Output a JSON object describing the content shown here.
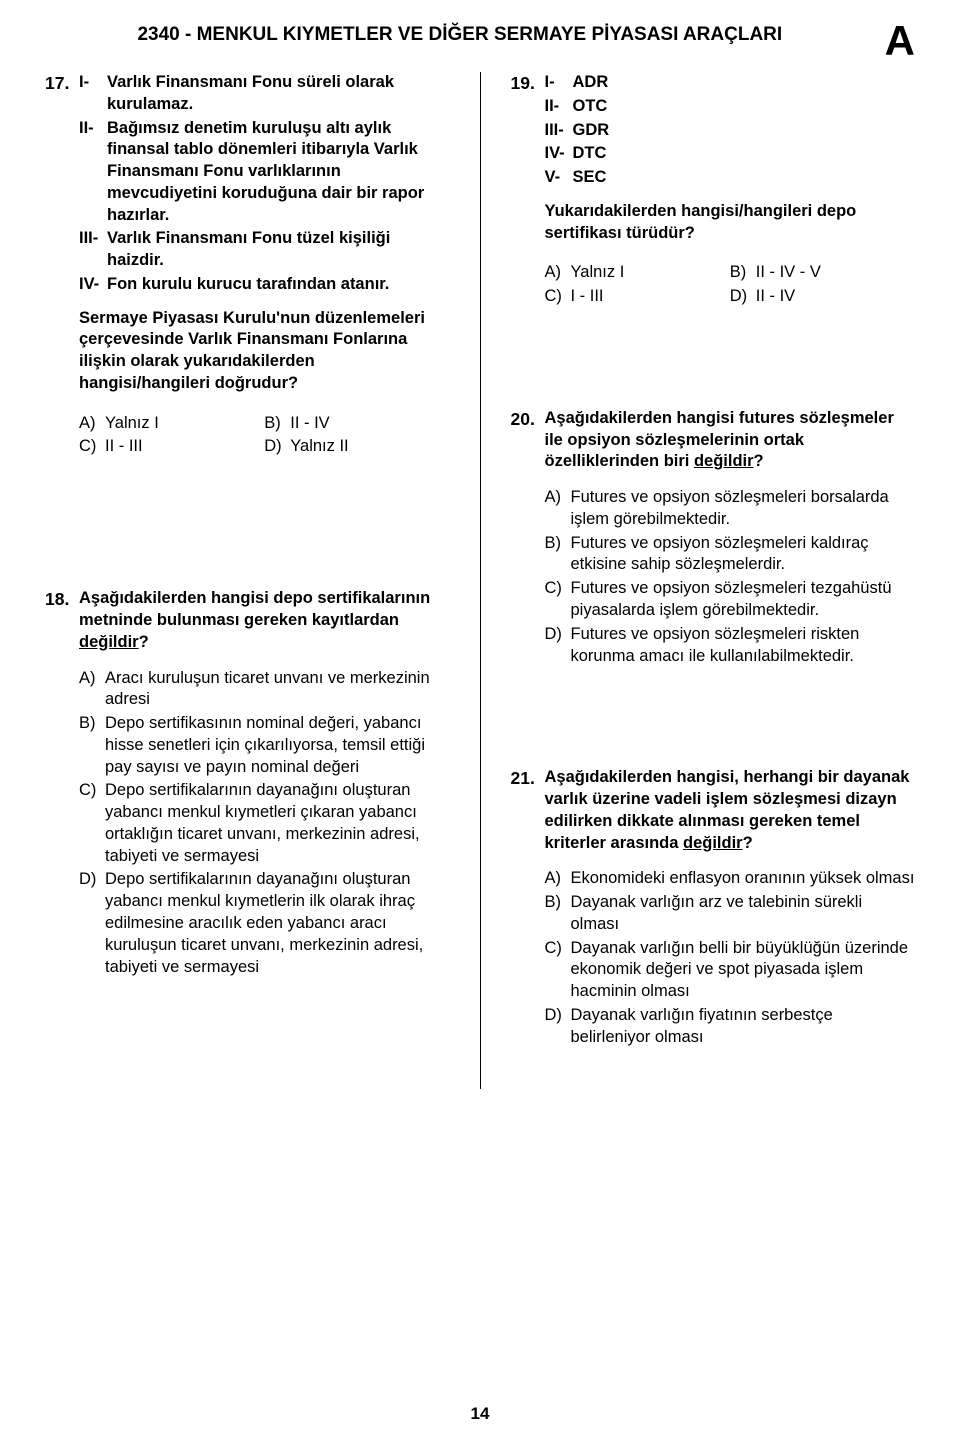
{
  "header": {
    "title": "2340 - MENKUL KIYMETLER VE DİĞER SERMAYE PİYASASI ARAÇLARI",
    "letter": "A"
  },
  "page_number": "14",
  "q17": {
    "num": "17.",
    "s1_lbl": "I-",
    "s1": "Varlık Finansmanı Fonu süreli olarak kurulamaz.",
    "s2_lbl": "II-",
    "s2": "Bağımsız denetim kuruluşu altı aylık finansal tablo dönemleri itibarıyla Varlık Finansmanı Fonu varlıklarının mevcudiyetini koruduğuna dair bir rapor hazırlar.",
    "s3_lbl": "III-",
    "s3": "Varlık Finansmanı Fonu tüzel kişiliği haizdir.",
    "s4_lbl": "IV-",
    "s4": "Fon kurulu kurucu tarafından atanır.",
    "prompt": "Sermaye Piyasası Kurulu'nun düzenlemeleri çerçevesinde Varlık Finansmanı Fonlarına ilişkin olarak yukarıdakilerden hangisi/hangileri doğrudur?",
    "oA_l": "A)",
    "oA": "Yalnız I",
    "oB_l": "B)",
    "oB": "II - IV",
    "oC_l": "C)",
    "oC": "II - III",
    "oD_l": "D)",
    "oD": "Yalnız II"
  },
  "q18": {
    "num": "18.",
    "prompt_pre": "Aşağıdakilerden hangisi depo sertifikalarının metninde bulunması gereken kayıtlardan ",
    "prompt_u": "değildir",
    "prompt_post": "?",
    "oA_l": "A)",
    "oA": "Aracı kuruluşun ticaret unvanı ve merkezinin adresi",
    "oB_l": "B)",
    "oB": "Depo sertifikasının nominal değeri, yabancı hisse senetleri için çıkarılıyorsa, temsil ettiği pay sayısı ve payın nominal değeri",
    "oC_l": "C)",
    "oC": "Depo sertifikalarının dayanağını oluşturan yabancı menkul kıymetleri çıkaran yabancı ortaklığın ticaret unvanı, merkezinin adresi, tabiyeti ve sermayesi",
    "oD_l": "D)",
    "oD": "Depo sertifikalarının dayanağını oluşturan yabancı menkul kıymetlerin ilk olarak ihraç edilmesine aracılık eden yabancı aracı kuruluşun ticaret unvanı, merkezinin adresi, tabiyeti ve sermayesi"
  },
  "q19": {
    "num": "19.",
    "s1_lbl": "I-",
    "s1": "ADR",
    "s2_lbl": "II-",
    "s2": "OTC",
    "s3_lbl": "III-",
    "s3": "GDR",
    "s4_lbl": "IV-",
    "s4": "DTC",
    "s5_lbl": "V-",
    "s5": "SEC",
    "prompt": "Yukarıdakilerden hangisi/hangileri depo sertifikası türüdür?",
    "oA_l": "A)",
    "oA": "Yalnız I",
    "oB_l": "B)",
    "oB": "II - IV - V",
    "oC_l": "C)",
    "oC": "I - III",
    "oD_l": "D)",
    "oD": "II - IV"
  },
  "q20": {
    "num": "20.",
    "prompt_pre": "Aşağıdakilerden hangisi futures sözleşmeler ile opsiyon sözleşmelerinin ortak özelliklerinden biri ",
    "prompt_u": "değildir",
    "prompt_post": "?",
    "oA_l": "A)",
    "oA": "Futures ve opsiyon sözleşmeleri borsalarda işlem görebilmektedir.",
    "oB_l": "B)",
    "oB": "Futures ve opsiyon sözleşmeleri kaldıraç etkisine sahip sözleşmelerdir.",
    "oC_l": "C)",
    "oC": "Futures ve opsiyon sözleşmeleri tezgahüstü piyasalarda işlem görebilmektedir.",
    "oD_l": "D)",
    "oD": "Futures ve opsiyon sözleşmeleri riskten korunma amacı ile kullanılabilmektedir."
  },
  "q21": {
    "num": "21.",
    "prompt_pre": "Aşağıdakilerden hangisi, herhangi bir dayanak varlık üzerine vadeli işlem sözleşmesi dizayn edilirken dikkate alınması gereken temel kriterler arasında ",
    "prompt_u": "değildir",
    "prompt_post": "?",
    "oA_l": "A)",
    "oA": "Ekonomideki enflasyon oranının yüksek olması",
    "oB_l": "B)",
    "oB": "Dayanak varlığın arz ve talebinin sürekli olması",
    "oC_l": "C)",
    "oC": "Dayanak varlığın belli bir büyüklüğün üzerinde ekonomik değeri ve spot piyasada işlem hacminin olması",
    "oD_l": "D)",
    "oD": "Dayanak varlığın fiyatının serbestçe belirleniyor olması"
  }
}
